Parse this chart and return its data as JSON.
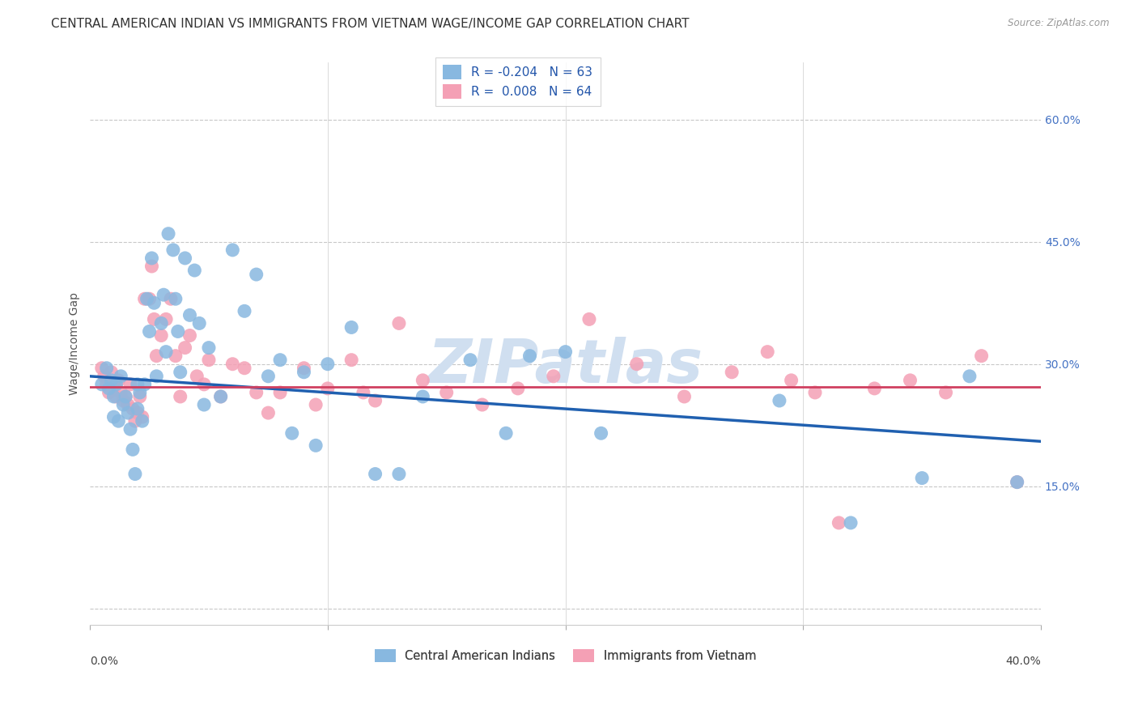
{
  "title": "CENTRAL AMERICAN INDIAN VS IMMIGRANTS FROM VIETNAM WAGE/INCOME GAP CORRELATION CHART",
  "source": "Source: ZipAtlas.com",
  "ylabel": "Wage/Income Gap",
  "yticks": [
    0.0,
    0.15,
    0.3,
    0.45,
    0.6
  ],
  "ytick_labels": [
    "",
    "15.0%",
    "30.0%",
    "45.0%",
    "60.0%"
  ],
  "xlim": [
    0.0,
    0.4
  ],
  "ylim": [
    -0.02,
    0.67
  ],
  "legend_label1": "R = -0.204   N = 63",
  "legend_label2": "R =  0.008   N = 64",
  "legend_label1_short": "Central American Indians",
  "legend_label2_short": "Immigrants from Vietnam",
  "color_blue": "#88b8e0",
  "color_pink": "#f4a0b5",
  "line_color_blue": "#2060b0",
  "line_color_pink": "#d04060",
  "background_color": "#ffffff",
  "watermark_color": "#d0dff0",
  "grid_color": "#c8c8c8",
  "title_fontsize": 11,
  "axis_label_fontsize": 10,
  "tick_fontsize": 10,
  "blue_x": [
    0.005,
    0.007,
    0.008,
    0.009,
    0.01,
    0.01,
    0.011,
    0.012,
    0.013,
    0.014,
    0.015,
    0.016,
    0.017,
    0.018,
    0.019,
    0.02,
    0.02,
    0.021,
    0.022,
    0.023,
    0.024,
    0.025,
    0.026,
    0.027,
    0.028,
    0.03,
    0.031,
    0.032,
    0.033,
    0.035,
    0.036,
    0.037,
    0.038,
    0.04,
    0.042,
    0.044,
    0.046,
    0.048,
    0.05,
    0.055,
    0.06,
    0.065,
    0.07,
    0.075,
    0.08,
    0.085,
    0.09,
    0.095,
    0.1,
    0.11,
    0.12,
    0.13,
    0.14,
    0.16,
    0.175,
    0.185,
    0.2,
    0.215,
    0.29,
    0.32,
    0.35,
    0.37,
    0.39
  ],
  "blue_y": [
    0.275,
    0.295,
    0.27,
    0.28,
    0.26,
    0.235,
    0.275,
    0.23,
    0.285,
    0.25,
    0.26,
    0.24,
    0.22,
    0.195,
    0.165,
    0.275,
    0.245,
    0.265,
    0.23,
    0.275,
    0.38,
    0.34,
    0.43,
    0.375,
    0.285,
    0.35,
    0.385,
    0.315,
    0.46,
    0.44,
    0.38,
    0.34,
    0.29,
    0.43,
    0.36,
    0.415,
    0.35,
    0.25,
    0.32,
    0.26,
    0.44,
    0.365,
    0.41,
    0.285,
    0.305,
    0.215,
    0.29,
    0.2,
    0.3,
    0.345,
    0.165,
    0.165,
    0.26,
    0.305,
    0.215,
    0.31,
    0.315,
    0.215,
    0.255,
    0.105,
    0.16,
    0.285,
    0.155
  ],
  "pink_x": [
    0.005,
    0.006,
    0.007,
    0.008,
    0.009,
    0.01,
    0.011,
    0.012,
    0.013,
    0.014,
    0.015,
    0.016,
    0.017,
    0.018,
    0.019,
    0.02,
    0.021,
    0.022,
    0.023,
    0.025,
    0.026,
    0.027,
    0.028,
    0.03,
    0.032,
    0.034,
    0.036,
    0.038,
    0.04,
    0.042,
    0.045,
    0.048,
    0.05,
    0.055,
    0.06,
    0.065,
    0.07,
    0.075,
    0.08,
    0.09,
    0.095,
    0.1,
    0.11,
    0.115,
    0.12,
    0.13,
    0.14,
    0.15,
    0.165,
    0.18,
    0.195,
    0.21,
    0.23,
    0.25,
    0.27,
    0.285,
    0.295,
    0.305,
    0.315,
    0.33,
    0.345,
    0.36,
    0.375,
    0.39
  ],
  "pink_y": [
    0.295,
    0.285,
    0.275,
    0.265,
    0.29,
    0.275,
    0.26,
    0.28,
    0.265,
    0.255,
    0.26,
    0.25,
    0.275,
    0.245,
    0.23,
    0.24,
    0.26,
    0.235,
    0.38,
    0.38,
    0.42,
    0.355,
    0.31,
    0.335,
    0.355,
    0.38,
    0.31,
    0.26,
    0.32,
    0.335,
    0.285,
    0.275,
    0.305,
    0.26,
    0.3,
    0.295,
    0.265,
    0.24,
    0.265,
    0.295,
    0.25,
    0.27,
    0.305,
    0.265,
    0.255,
    0.35,
    0.28,
    0.265,
    0.25,
    0.27,
    0.285,
    0.355,
    0.3,
    0.26,
    0.29,
    0.315,
    0.28,
    0.265,
    0.105,
    0.27,
    0.28,
    0.265,
    0.31,
    0.155
  ]
}
